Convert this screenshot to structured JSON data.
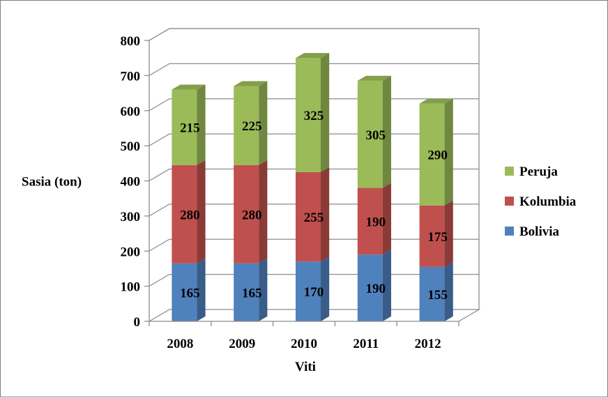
{
  "chart_data": {
    "type": "bar",
    "stacked": true,
    "three_d": true,
    "categories": [
      "2008",
      "2009",
      "2010",
      "2011",
      "2012"
    ],
    "series": [
      {
        "name": "Bolivia",
        "values": [
          165,
          165,
          170,
          190,
          155
        ],
        "color": "#4f81bd"
      },
      {
        "name": "Kolumbia",
        "values": [
          280,
          280,
          255,
          190,
          175
        ],
        "color": "#c0504d"
      },
      {
        "name": "Peruja",
        "values": [
          215,
          225,
          325,
          305,
          290
        ],
        "color": "#9bbb59"
      }
    ],
    "xlabel": "Viti",
    "ylabel": "Sasia (ton)",
    "ylim": [
      0,
      800
    ],
    "yticks": [
      0,
      100,
      200,
      300,
      400,
      500,
      600,
      700,
      800
    ],
    "grid": true,
    "legend_position": "right",
    "legend_order": [
      "Peruja",
      "Kolumbia",
      "Bolivia"
    ]
  }
}
